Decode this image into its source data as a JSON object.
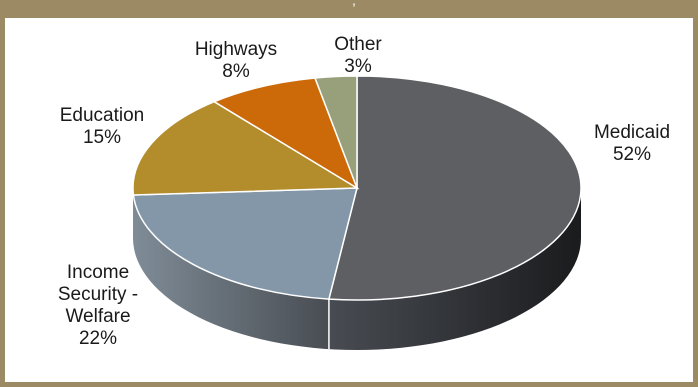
{
  "header": {
    "fragment": ","
  },
  "chart_data": {
    "type": "pie",
    "style": "3d",
    "start_angle_deg": 0,
    "direction": "clockwise",
    "slices": [
      {
        "name": "Medicaid",
        "value": 52,
        "label": "52%",
        "color": "#5e5f63"
      },
      {
        "name": "Income Security - Welfare",
        "value": 22,
        "label": "22%",
        "color": "#8497a8"
      },
      {
        "name": "Education",
        "value": 15,
        "label": "15%",
        "color": "#b38c2b"
      },
      {
        "name": "Highways",
        "value": 8,
        "label": "8%",
        "color": "#cc6a0a"
      },
      {
        "name": "Other",
        "value": 3,
        "label": "3%",
        "color": "#97a07a"
      }
    ],
    "label_lines": [
      [
        "Medicaid",
        "52%"
      ],
      [
        "Income",
        "Security -",
        "Welfare",
        "22%"
      ],
      [
        "Education",
        "15%"
      ],
      [
        "Highways",
        "8%"
      ],
      [
        "Other",
        "3%"
      ]
    ]
  }
}
